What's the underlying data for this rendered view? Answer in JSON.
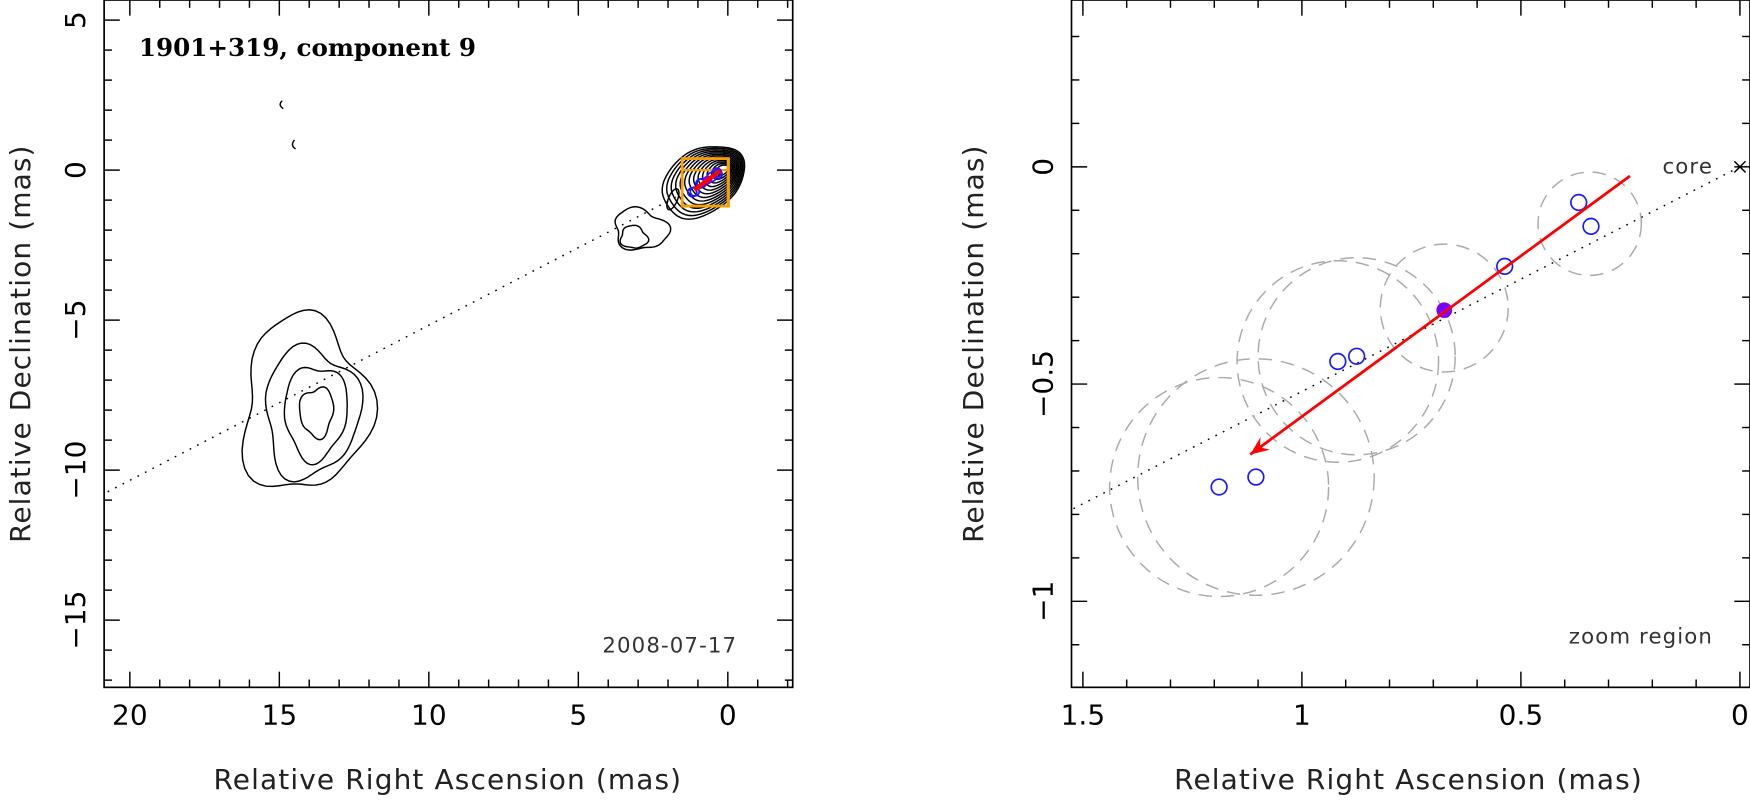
{
  "chart_data": [
    {
      "type": "contour",
      "title": "1901+319, component 9",
      "annotation": "2008-07-17",
      "xlabel": "Relative Right Ascension (mas)",
      "ylabel": "Relative Declination (mas)",
      "xlim": [
        20.86,
        -2.17
      ],
      "ylim": [
        -17.24,
        5.67
      ],
      "xticks": [
        20,
        15,
        10,
        5,
        0
      ],
      "xtick_labels": [
        "20",
        "15",
        "10",
        "5",
        "0"
      ],
      "yticks": [
        5,
        0,
        -5,
        -10,
        -15
      ],
      "ytick_labels": [
        "5",
        "0",
        "−5",
        "−10",
        "−15"
      ],
      "reference_line": {
        "style": "dotted",
        "through": [
          0,
          0
        ],
        "dec_per_ra": -0.517
      },
      "zoom_box": {
        "ra": [
          1.526,
          -0.023
        ],
        "dec": [
          -1.198,
          0.384
        ],
        "color": "#f5a000"
      },
      "grid": false
    },
    {
      "type": "scatter",
      "xlabel": "Relative Right Ascension (mas)",
      "ylabel": "Relative Declination (mas)",
      "xlim": [
        1.526,
        -0.023
      ],
      "ylim": [
        -1.198,
        0.384
      ],
      "xticks": [
        1.5,
        1,
        0.5,
        0
      ],
      "xtick_labels": [
        "1.5",
        "1",
        "0.5",
        "0"
      ],
      "yticks": [
        0,
        -0.5,
        -1
      ],
      "ytick_labels": [
        "0",
        "−0.5",
        "−1"
      ],
      "core_label": "core",
      "core": [
        0,
        0
      ],
      "zoom_label": "zoom region",
      "points": [
        {
          "ra": 1.189,
          "dec": -0.737
        },
        {
          "ra": 1.105,
          "dec": -0.714
        },
        {
          "ra": 0.918,
          "dec": -0.448
        },
        {
          "ra": 0.875,
          "dec": -0.436
        },
        {
          "ra": 0.537,
          "dec": -0.229
        },
        {
          "ra": 0.368,
          "dec": -0.082
        },
        {
          "ra": 0.34,
          "dec": -0.137
        }
      ],
      "highlight_point": {
        "ra": 0.675,
        "dec": -0.33
      },
      "uncertainty_circles": [
        {
          "ra": 1.189,
          "dec": -0.737,
          "r": 0.25
        },
        {
          "ra": 1.105,
          "dec": -0.714,
          "r": 0.27
        },
        {
          "ra": 0.918,
          "dec": -0.448,
          "r": 0.23
        },
        {
          "ra": 0.875,
          "dec": -0.436,
          "r": 0.225
        },
        {
          "ra": 0.675,
          "dec": -0.325,
          "r": 0.146
        },
        {
          "ra": 0.343,
          "dec": -0.131,
          "r": 0.118
        }
      ],
      "arrow": {
        "from": [
          0.251,
          -0.021
        ],
        "to": [
          1.118,
          -0.662
        ]
      },
      "reference_line": {
        "style": "dotted",
        "through": [
          0,
          0
        ],
        "dec_per_ra": -0.517
      },
      "colors": {
        "points": "#1a1aff",
        "highlight": "#7a00ff",
        "arrow": "#ff0000",
        "circles": "#aaaaaa"
      },
      "grid": false
    }
  ]
}
